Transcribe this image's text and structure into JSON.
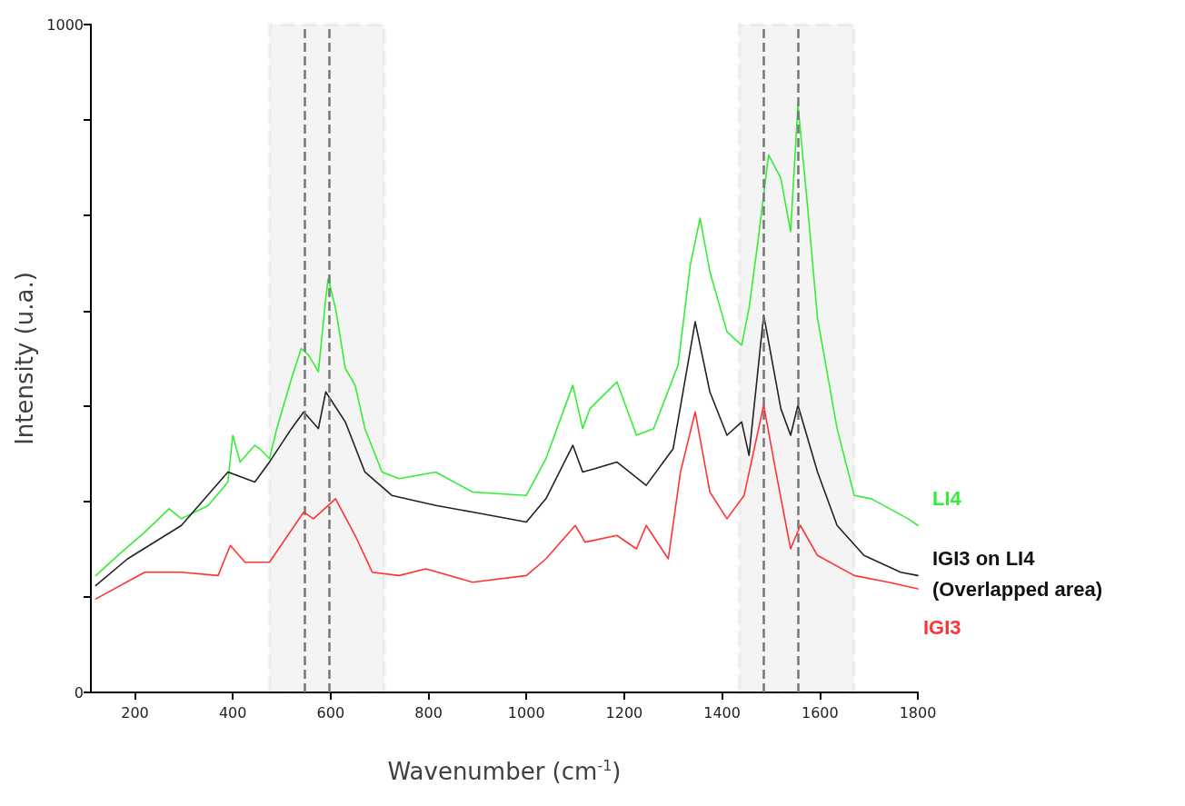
{
  "chart_data": {
    "type": "line",
    "xlabel": "Wavenumber (cm$^{-1}$)",
    "ylabel": "Intensity (u.a.)",
    "xlim": [
      110,
      1800
    ],
    "xticks": [
      200,
      400,
      600,
      800,
      1000,
      1200,
      1400,
      1600,
      1800
    ],
    "ylim": [
      0,
      1000
    ],
    "yticks": [
      {
        "value": 0,
        "label": "0"
      },
      {
        "value": 143,
        "label": null
      },
      {
        "value": 286,
        "label": null
      },
      {
        "value": 429,
        "label": null
      },
      {
        "value": 571,
        "label": null
      },
      {
        "value": 714,
        "label": null
      },
      {
        "value": 857,
        "label": null
      },
      1000
    ],
    "grid": false,
    "legend": false,
    "marker": "none",
    "line_style": "solid",
    "series": [
      {
        "name": "LI4",
        "color": "#33ee33",
        "x": [
          120,
          165,
          220,
          270,
          295,
          350,
          390,
          400,
          415,
          445,
          455,
          475,
          490,
          520,
          540,
          555,
          575,
          590,
          595,
          610,
          630,
          650,
          670,
          705,
          740,
          815,
          890,
          1000,
          1040,
          1095,
          1115,
          1130,
          1185,
          1225,
          1260,
          1310,
          1335,
          1355,
          1375,
          1410,
          1440,
          1455,
          1475,
          1495,
          1520,
          1540,
          1555,
          1575,
          1595,
          1635,
          1670,
          1705,
          1780,
          1800
        ],
        "values": [
          175,
          205,
          240,
          275,
          260,
          280,
          315,
          385,
          345,
          370,
          365,
          350,
          395,
          470,
          515,
          505,
          480,
          590,
          620,
          575,
          485,
          460,
          395,
          330,
          320,
          330,
          300,
          295,
          350,
          460,
          395,
          425,
          465,
          385,
          395,
          490,
          640,
          710,
          630,
          540,
          520,
          575,
          685,
          805,
          770,
          690,
          880,
          725,
          560,
          395,
          295,
          290,
          260,
          250
        ]
      },
      {
        "name": "IGI3 on LI4\n(Overlapped area)",
        "color": "#222222",
        "x": [
          120,
          185,
          295,
          390,
          445,
          475,
          520,
          545,
          575,
          590,
          630,
          670,
          725,
          815,
          890,
          1000,
          1040,
          1095,
          1115,
          1140,
          1185,
          1245,
          1300,
          1345,
          1375,
          1410,
          1440,
          1455,
          1485,
          1520,
          1540,
          1555,
          1595,
          1635,
          1690,
          1765,
          1800
        ],
        "values": [
          160,
          200,
          250,
          330,
          315,
          345,
          395,
          420,
          395,
          450,
          405,
          330,
          295,
          280,
          270,
          255,
          290,
          370,
          330,
          335,
          345,
          310,
          365,
          555,
          450,
          385,
          405,
          355,
          565,
          425,
          385,
          430,
          330,
          250,
          205,
          180,
          175
        ]
      },
      {
        "name": "IGI3",
        "color": "#ff3333",
        "x": [
          120,
          220,
          295,
          370,
          395,
          425,
          475,
          545,
          565,
          610,
          650,
          685,
          740,
          795,
          890,
          1000,
          1040,
          1100,
          1120,
          1185,
          1225,
          1245,
          1290,
          1315,
          1345,
          1375,
          1410,
          1445,
          1485,
          1510,
          1540,
          1560,
          1595,
          1670,
          1740,
          1800
        ],
        "values": [
          140,
          180,
          180,
          175,
          220,
          195,
          195,
          270,
          260,
          290,
          235,
          180,
          175,
          185,
          165,
          175,
          200,
          250,
          225,
          235,
          215,
          250,
          200,
          330,
          420,
          300,
          260,
          295,
          430,
          330,
          215,
          250,
          205,
          175,
          165,
          155
        ]
      }
    ],
    "bands": [
      {
        "axis": "x",
        "from": 475,
        "to": 710,
        "color": "#777777"
      },
      {
        "axis": "x",
        "from": 1435,
        "to": 1670,
        "color": "#777777"
      }
    ],
    "ref_lines": [
      {
        "axis": "x",
        "value": 547,
        "color": "#777777",
        "line_style": "dashed"
      },
      {
        "axis": "x",
        "value": 597,
        "color": "#777777",
        "line_style": "dashed"
      },
      {
        "axis": "x",
        "value": 1484,
        "color": "#777777",
        "line_style": "dashed"
      },
      {
        "axis": "x",
        "value": 1555,
        "color": "#777777",
        "line_style": "dashed"
      }
    ]
  }
}
